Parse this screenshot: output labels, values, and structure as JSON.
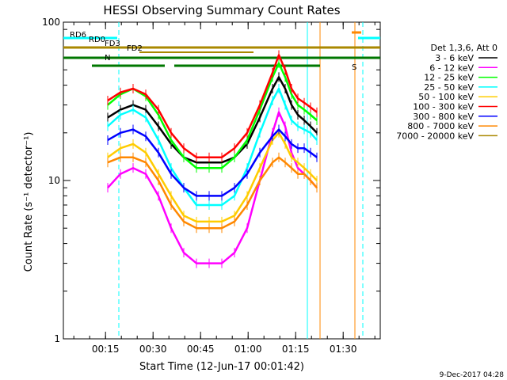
{
  "chart_data": {
    "type": "line",
    "title": "HESSI Observing Summary Count Rates",
    "xlabel": "Start Time (12-Jun-17 00:01:42)",
    "ylabel": "Count Rate (s⁻¹ detector⁻¹)",
    "yscale": "log",
    "xlim": [
      0,
      100
    ],
    "ylim": [
      1,
      100
    ],
    "x_ticks": [
      {
        "value": 13.3,
        "label": "00:15"
      },
      {
        "value": 28.3,
        "label": "00:30"
      },
      {
        "value": 43.3,
        "label": "00:45"
      },
      {
        "value": 58.3,
        "label": "01:00"
      },
      {
        "value": 73.3,
        "label": "01:15"
      },
      {
        "value": 88.3,
        "label": "01:30"
      }
    ],
    "y_ticks": [
      {
        "value": 1,
        "label": "1"
      },
      {
        "value": 10,
        "label": "10"
      },
      {
        "value": 100,
        "label": "100"
      }
    ],
    "legend_header": "Det 1,3,6, Att 0",
    "legend_placement": "right",
    "x_sample": [
      14,
      18,
      22,
      26,
      30,
      34,
      38,
      42,
      46,
      50,
      54,
      58,
      62,
      66,
      68,
      70,
      72,
      74,
      76,
      78,
      80
    ],
    "series": [
      {
        "name": "3 - 6 keV",
        "color": "#000000",
        "values": [
          25,
          28,
          30,
          28,
          22,
          17,
          14,
          13,
          13,
          13,
          14,
          17,
          25,
          38,
          45,
          38,
          30,
          26,
          24,
          22,
          20
        ]
      },
      {
        "name": "6 - 12 keV",
        "color": "#ff00ff",
        "values": [
          9,
          11,
          12,
          11,
          8,
          5,
          3.5,
          3,
          3,
          3,
          3.5,
          5,
          10,
          20,
          27,
          22,
          15,
          12,
          11,
          10,
          9
        ]
      },
      {
        "name": "12 - 25 keV",
        "color": "#00ff00",
        "values": [
          30,
          35,
          38,
          34,
          26,
          18,
          14,
          12,
          12,
          12,
          14,
          18,
          28,
          45,
          55,
          45,
          35,
          30,
          28,
          26,
          24
        ]
      },
      {
        "name": "25 - 50 keV",
        "color": "#00ffff",
        "values": [
          22,
          26,
          28,
          25,
          18,
          12,
          9,
          7,
          7,
          7,
          8,
          12,
          20,
          32,
          38,
          30,
          24,
          22,
          21,
          20,
          18
        ]
      },
      {
        "name": "50 - 100 keV",
        "color": "#ffcc00",
        "values": [
          14,
          16,
          17,
          15,
          11,
          8,
          6,
          5.5,
          5.5,
          5.5,
          6,
          8,
          12,
          18,
          20,
          17,
          14,
          13,
          12,
          11,
          10
        ]
      },
      {
        "name": "100 - 300 keV",
        "color": "#ff0000",
        "values": [
          32,
          36,
          38,
          35,
          28,
          20,
          16,
          14,
          14,
          14,
          16,
          20,
          30,
          48,
          62,
          50,
          38,
          33,
          31,
          29,
          27
        ]
      },
      {
        "name": "300 - 800 keV",
        "color": "#0000ff",
        "values": [
          18,
          20,
          21,
          19,
          15,
          11,
          9,
          8,
          8,
          8,
          9,
          11,
          15,
          19,
          21,
          19,
          17,
          16,
          16,
          15,
          14
        ]
      },
      {
        "name": "800 - 7000 keV",
        "color": "#ff8800",
        "values": [
          13,
          14,
          14,
          13,
          10,
          7,
          5.5,
          5,
          5,
          5,
          5.5,
          7,
          10,
          13,
          14,
          13,
          12,
          11,
          11,
          10,
          9
        ]
      },
      {
        "name": "7000 - 20000 keV",
        "color": "#aa8800",
        "values": []
      }
    ],
    "annotations": [
      {
        "label": "N",
        "x": 13,
        "y": 76,
        "color": "#00ffff"
      },
      {
        "label": "FD2",
        "x": 20,
        "y": 64,
        "color": "#aa8800"
      },
      {
        "label": "FD3",
        "x": 13,
        "y": 58,
        "color": "#aa8800"
      },
      {
        "label": "RD0",
        "x": 8,
        "y": 53,
        "color": "#007700"
      },
      {
        "label": "RD6",
        "x": 2,
        "y": 47,
        "color": "#007700"
      },
      {
        "label": "S",
        "x": 91,
        "y": 88,
        "color": "#ff8800"
      }
    ]
  },
  "footer": {
    "timestamp": "9-Dec-2017 04:28"
  }
}
